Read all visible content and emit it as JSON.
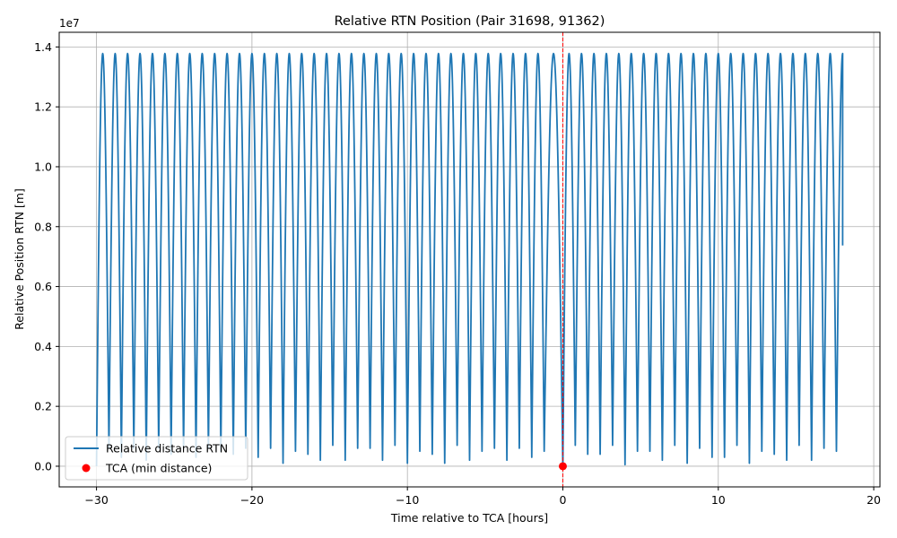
{
  "chart_data": {
    "type": "line",
    "title": "Relative RTN Position (Pair 31698, 91362)",
    "xlabel": "Time relative to TCA [hours]",
    "ylabel": "Relative Position RTN [m]",
    "y_offset_label": "1e7",
    "xlim": [
      -32.4,
      20.4
    ],
    "ylim": [
      -0.069,
      1.449
    ],
    "y_scale": 10000000.0,
    "xticks": [
      -30,
      -20,
      -10,
      0,
      10,
      20
    ],
    "xtick_labels": [
      "−30",
      "−20",
      "−10",
      "0",
      "10",
      "20"
    ],
    "yticks": [
      0.0,
      0.2,
      0.4,
      0.6,
      0.8,
      1.0,
      1.2,
      1.4
    ],
    "ytick_labels": [
      "0.0",
      "0.2",
      "0.4",
      "0.6",
      "0.8",
      "1.0",
      "1.2",
      "1.4"
    ],
    "grid": true,
    "legend_position": "lower-left",
    "colors": {
      "series": "#1f77b4",
      "tca": "#ff0000",
      "grid": "#b0b0b0"
    },
    "series": [
      {
        "name": "Relative distance RTN",
        "x_start": -30.0,
        "x_end": 18.0,
        "period_hours": 0.8,
        "peak_value": 1.378,
        "end_value": 0.737,
        "minima": [
          {
            "x": -30.0,
            "y": 0.0
          },
          {
            "x": -29.2,
            "y": 0.06
          },
          {
            "x": -28.4,
            "y": 0.03
          },
          {
            "x": -27.6,
            "y": 0.06
          },
          {
            "x": -26.8,
            "y": 0.02
          },
          {
            "x": -26.0,
            "y": 0.06
          },
          {
            "x": -25.2,
            "y": 0.04
          },
          {
            "x": -24.4,
            "y": 0.06
          },
          {
            "x": -23.6,
            "y": 0.03
          },
          {
            "x": -22.8,
            "y": 0.06
          },
          {
            "x": -22.0,
            "y": 0.05
          },
          {
            "x": -21.2,
            "y": 0.04
          },
          {
            "x": -20.4,
            "y": 0.06
          },
          {
            "x": -19.6,
            "y": 0.03
          },
          {
            "x": -18.8,
            "y": 0.06
          },
          {
            "x": -18.0,
            "y": 0.01
          },
          {
            "x": -17.2,
            "y": 0.05
          },
          {
            "x": -16.4,
            "y": 0.04
          },
          {
            "x": -15.6,
            "y": 0.02
          },
          {
            "x": -14.8,
            "y": 0.07
          },
          {
            "x": -14.0,
            "y": 0.02
          },
          {
            "x": -13.2,
            "y": 0.06
          },
          {
            "x": -12.4,
            "y": 0.06
          },
          {
            "x": -11.6,
            "y": 0.02
          },
          {
            "x": -10.8,
            "y": 0.07
          },
          {
            "x": -10.0,
            "y": 0.01
          },
          {
            "x": -9.2,
            "y": 0.05
          },
          {
            "x": -8.4,
            "y": 0.04
          },
          {
            "x": -7.6,
            "y": 0.01
          },
          {
            "x": -6.8,
            "y": 0.07
          },
          {
            "x": -6.0,
            "y": 0.02
          },
          {
            "x": -5.2,
            "y": 0.05
          },
          {
            "x": -4.4,
            "y": 0.06
          },
          {
            "x": -3.6,
            "y": 0.02
          },
          {
            "x": -2.8,
            "y": 0.06
          },
          {
            "x": -2.0,
            "y": 0.03
          },
          {
            "x": -1.2,
            "y": 0.05
          },
          {
            "x": 0.0,
            "y": 0.0
          },
          {
            "x": 0.8,
            "y": 0.07
          },
          {
            "x": 1.6,
            "y": 0.04
          },
          {
            "x": 2.4,
            "y": 0.04
          },
          {
            "x": 3.2,
            "y": 0.07
          },
          {
            "x": 4.0,
            "y": 0.005
          },
          {
            "x": 4.8,
            "y": 0.05
          },
          {
            "x": 5.6,
            "y": 0.05
          },
          {
            "x": 6.4,
            "y": 0.02
          },
          {
            "x": 7.2,
            "y": 0.07
          },
          {
            "x": 8.0,
            "y": 0.01
          },
          {
            "x": 8.8,
            "y": 0.06
          },
          {
            "x": 9.6,
            "y": 0.03
          },
          {
            "x": 10.4,
            "y": 0.03
          },
          {
            "x": 11.2,
            "y": 0.07
          },
          {
            "x": 12.0,
            "y": 0.01
          },
          {
            "x": 12.8,
            "y": 0.05
          },
          {
            "x": 13.6,
            "y": 0.04
          },
          {
            "x": 14.4,
            "y": 0.02
          },
          {
            "x": 15.2,
            "y": 0.07
          },
          {
            "x": 16.0,
            "y": 0.02
          },
          {
            "x": 16.8,
            "y": 0.06
          },
          {
            "x": 17.6,
            "y": 0.05
          }
        ]
      },
      {
        "name": "TCA (min distance)",
        "type": "scatter",
        "points": [
          {
            "x": 0.0,
            "y": 0.0
          }
        ]
      }
    ]
  }
}
